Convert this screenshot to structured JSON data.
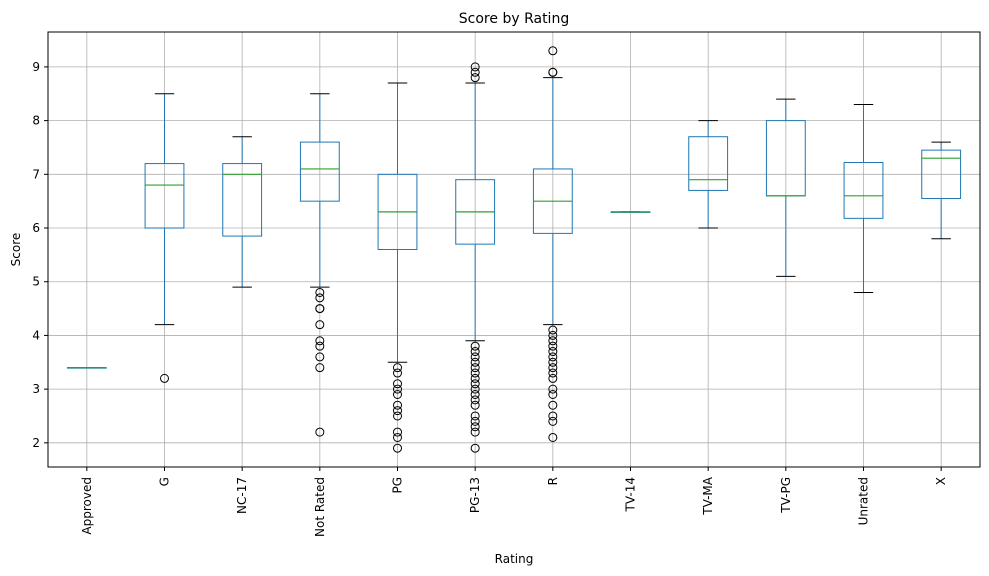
{
  "chart_data": {
    "type": "box",
    "title": "Score by Rating",
    "xlabel": "Rating",
    "ylabel": "Score",
    "ylim": [
      1.55,
      9.65
    ],
    "yticks": [
      2,
      3,
      4,
      5,
      6,
      7,
      8,
      9
    ],
    "grid": true,
    "colors": {
      "box": "#1f77b4",
      "median": "#2ca02c",
      "whisker": "#000000",
      "grid": "#b0b0b0"
    },
    "categories": [
      "Approved",
      "G",
      "NC-17",
      "Not Rated",
      "PG",
      "PG-13",
      "R",
      "TV-14",
      "TV-MA",
      "TV-PG",
      "Unrated",
      "X"
    ],
    "boxes": [
      {
        "category": "Approved",
        "whisker_low": 3.4,
        "q1": 3.4,
        "median": 3.4,
        "q3": 3.4,
        "whisker_high": 3.4,
        "outliers": []
      },
      {
        "category": "G",
        "whisker_low": 4.2,
        "q1": 6.0,
        "median": 6.8,
        "q3": 7.2,
        "whisker_high": 8.5,
        "outliers": [
          3.2
        ]
      },
      {
        "category": "NC-17",
        "whisker_low": 4.9,
        "q1": 5.85,
        "median": 7.0,
        "q3": 7.2,
        "whisker_high": 7.7,
        "outliers": []
      },
      {
        "category": "Not Rated",
        "whisker_low": 4.9,
        "q1": 6.5,
        "median": 7.1,
        "q3": 7.6,
        "whisker_high": 8.5,
        "outliers": [
          4.8,
          4.7,
          4.5,
          4.5,
          4.2,
          3.9,
          3.8,
          3.6,
          3.4,
          2.2
        ]
      },
      {
        "category": "PG",
        "whisker_low": 3.5,
        "q1": 5.6,
        "median": 6.3,
        "q3": 7.0,
        "whisker_high": 8.7,
        "outliers": [
          3.4,
          3.3,
          3.1,
          3.0,
          2.9,
          2.7,
          2.6,
          2.5,
          2.2,
          2.1,
          1.9
        ]
      },
      {
        "category": "PG-13",
        "whisker_low": 3.9,
        "q1": 5.7,
        "median": 6.3,
        "q3": 6.9,
        "whisker_high": 8.7,
        "outliers": [
          9.0,
          8.9,
          8.8,
          3.8,
          3.7,
          3.6,
          3.5,
          3.4,
          3.3,
          3.2,
          3.1,
          3.0,
          2.9,
          2.8,
          2.7,
          2.5,
          2.4,
          2.3,
          2.2,
          1.9
        ]
      },
      {
        "category": "R",
        "whisker_low": 4.2,
        "q1": 5.9,
        "median": 6.5,
        "q3": 7.1,
        "whisker_high": 8.8,
        "outliers": [
          9.3,
          8.9,
          8.9,
          4.1,
          4.0,
          3.9,
          3.8,
          3.7,
          3.6,
          3.5,
          3.4,
          3.3,
          3.2,
          3.0,
          2.9,
          2.7,
          2.5,
          2.4,
          2.1
        ]
      },
      {
        "category": "TV-14",
        "whisker_low": 6.3,
        "q1": 6.3,
        "median": 6.3,
        "q3": 6.3,
        "whisker_high": 6.3,
        "outliers": []
      },
      {
        "category": "TV-MA",
        "whisker_low": 6.0,
        "q1": 6.7,
        "median": 6.9,
        "q3": 7.7,
        "whisker_high": 8.0,
        "outliers": []
      },
      {
        "category": "TV-PG",
        "whisker_low": 5.1,
        "q1": 6.6,
        "median": 6.6,
        "q3": 8.0,
        "whisker_high": 8.4,
        "outliers": []
      },
      {
        "category": "Unrated",
        "whisker_low": 4.8,
        "q1": 6.18,
        "median": 6.6,
        "q3": 7.22,
        "whisker_high": 8.3,
        "outliers": []
      },
      {
        "category": "X",
        "whisker_low": 5.8,
        "q1": 6.55,
        "median": 7.3,
        "q3": 7.45,
        "whisker_high": 7.6,
        "outliers": []
      }
    ]
  }
}
